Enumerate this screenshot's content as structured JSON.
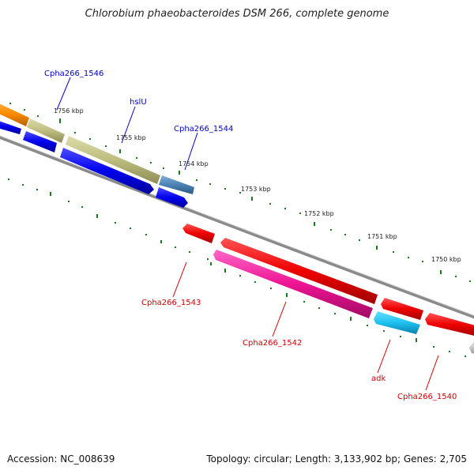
{
  "title": "Chlorobium phaeobacteroides DSM 266, complete genome",
  "footer": {
    "accession": "Accession: NC_008639",
    "summary": "Topology: circular; Length: 3,133,902 bp; Genes: 2,705"
  },
  "colors": {
    "forward_label": "#0000c0",
    "reverse_label": "#cc0000",
    "tick": "#1a7a1a",
    "backbone": "#8a8a8a"
  },
  "kbp_labels": [
    "1756 kbp",
    "1755 kbp",
    "1754 kbp",
    "1753 kbp",
    "1752 kbp",
    "1751 kbp",
    "1750 kbp"
  ],
  "genes": [
    {
      "name": "Cpha266_1546",
      "strand": "forward"
    },
    {
      "name": "hslU",
      "strand": "forward"
    },
    {
      "name": "Cpha266_1544",
      "strand": "forward"
    },
    {
      "name": "Cpha266_1543",
      "strand": "reverse"
    },
    {
      "name": "Cpha266_1542",
      "strand": "reverse"
    },
    {
      "name": "adk",
      "strand": "reverse"
    },
    {
      "name": "Cpha266_1540",
      "strand": "reverse"
    }
  ]
}
